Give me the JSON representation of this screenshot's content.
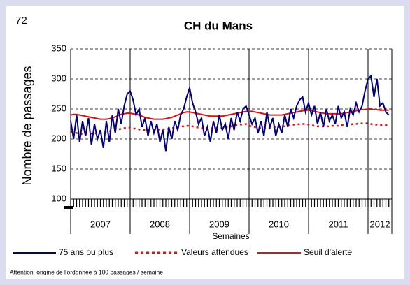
{
  "page_number": "72",
  "chart_data": {
    "type": "line",
    "title": "CH du Mans",
    "y_label": "Nombre de passages",
    "x_label": "Semaines",
    "footnote": "Attention: origine de l'ordonnée à 100 passages / semaine",
    "x": [
      2007,
      2007.05,
      2007.1,
      2007.15,
      2007.2,
      2007.25,
      2007.3,
      2007.35,
      2007.4,
      2007.45,
      2007.5,
      2007.55,
      2007.6,
      2007.65,
      2007.7,
      2007.75,
      2007.8,
      2007.85,
      2007.9,
      2007.95,
      2008,
      2008.05,
      2008.1,
      2008.15,
      2008.2,
      2008.25,
      2008.3,
      2008.35,
      2008.4,
      2008.45,
      2008.5,
      2008.55,
      2008.6,
      2008.65,
      2008.7,
      2008.75,
      2008.8,
      2008.85,
      2008.9,
      2008.95,
      2009,
      2009.05,
      2009.1,
      2009.15,
      2009.2,
      2009.25,
      2009.3,
      2009.35,
      2009.4,
      2009.45,
      2009.5,
      2009.55,
      2009.6,
      2009.65,
      2009.7,
      2009.75,
      2009.8,
      2009.85,
      2009.9,
      2009.95,
      2010,
      2010.05,
      2010.1,
      2010.15,
      2010.2,
      2010.25,
      2010.3,
      2010.35,
      2010.4,
      2010.45,
      2010.5,
      2010.55,
      2010.6,
      2010.65,
      2010.7,
      2010.75,
      2010.8,
      2010.85,
      2010.9,
      2010.95,
      2011,
      2011.05,
      2011.1,
      2011.15,
      2011.2,
      2011.25,
      2011.3,
      2011.35,
      2011.4,
      2011.45,
      2011.5,
      2011.55,
      2011.6,
      2011.65,
      2011.7,
      2011.75,
      2011.8,
      2011.85,
      2011.9,
      2011.95,
      2012,
      2012.05,
      2012.1,
      2012.15,
      2012.2,
      2012.25,
      2012.3,
      2012.35
    ],
    "series": [
      {
        "name": "75 ans ou plus",
        "color": "#000080",
        "style": "solid",
        "values": [
          230,
          200,
          240,
          195,
          230,
          205,
          235,
          190,
          225,
          200,
          215,
          185,
          230,
          195,
          240,
          210,
          250,
          225,
          255,
          275,
          280,
          265,
          240,
          250,
          220,
          235,
          205,
          230,
          210,
          225,
          195,
          215,
          180,
          220,
          200,
          230,
          215,
          240,
          250,
          270,
          285,
          260,
          245,
          225,
          235,
          205,
          220,
          195,
          230,
          210,
          240,
          215,
          225,
          200,
          235,
          215,
          245,
          230,
          250,
          255,
          240,
          225,
          235,
          210,
          230,
          205,
          245,
          220,
          235,
          205,
          225,
          210,
          240,
          220,
          250,
          235,
          255,
          265,
          270,
          245,
          260,
          240,
          255,
          225,
          245,
          220,
          250,
          230,
          240,
          225,
          255,
          235,
          245,
          220,
          250,
          240,
          260,
          245,
          255,
          280,
          300,
          305,
          270,
          300,
          255,
          260,
          245,
          240
        ]
      },
      {
        "name": "Valeurs attendues",
        "color": "#e01010",
        "style": "dotted",
        "values": [
          212,
          211,
          210,
          209,
          208,
          208,
          208,
          209,
          209,
          210,
          210,
          211,
          212,
          213,
          214,
          215,
          216,
          217,
          218,
          219,
          219,
          218,
          217,
          216,
          215,
          215,
          215,
          215,
          215,
          216,
          216,
          216,
          217,
          217,
          218,
          219,
          220,
          221,
          221,
          222,
          222,
          221,
          220,
          219,
          218,
          218,
          218,
          218,
          218,
          219,
          219,
          219,
          220,
          220,
          221,
          222,
          223,
          224,
          224,
          225,
          222,
          221,
          220,
          219,
          219,
          219,
          219,
          219,
          220,
          220,
          220,
          221,
          221,
          222,
          223,
          224,
          224,
          225,
          225,
          225,
          224,
          223,
          222,
          221,
          221,
          221,
          221,
          221,
          222,
          222,
          222,
          223,
          223,
          223,
          224,
          225,
          225,
          226,
          226,
          226,
          226,
          225,
          224,
          224,
          223,
          223,
          223,
          223
        ]
      },
      {
        "name": "Seuil d'alerte",
        "color": "#e01010",
        "style": "solid",
        "values": [
          240,
          241,
          241,
          240,
          239,
          238,
          237,
          236,
          235,
          234,
          233,
          233,
          233,
          234,
          235,
          237,
          239,
          241,
          242,
          243,
          243,
          242,
          241,
          240,
          238,
          236,
          235,
          234,
          233,
          233,
          233,
          233,
          234,
          235,
          236,
          238,
          240,
          242,
          244,
          245,
          245,
          244,
          243,
          242,
          241,
          240,
          239,
          238,
          238,
          238,
          238,
          238,
          239,
          240,
          241,
          242,
          243,
          244,
          245,
          246,
          246,
          246,
          245,
          244,
          243,
          242,
          241,
          240,
          240,
          240,
          240,
          240,
          241,
          242,
          243,
          244,
          245,
          246,
          247,
          248,
          248,
          247,
          246,
          245,
          244,
          243,
          242,
          242,
          242,
          242,
          242,
          242,
          243,
          244,
          245,
          246,
          247,
          248,
          249,
          249,
          250,
          250,
          249,
          249,
          248,
          248,
          248,
          248
        ]
      }
    ],
    "xlim": [
      2007,
      2012.4
    ],
    "xticks": [
      2007,
      2008,
      2009,
      2010,
      2011,
      2012
    ],
    "ylim": [
      100,
      350
    ],
    "yticks": [
      100,
      150,
      200,
      250,
      300,
      350
    ],
    "grid": true,
    "legend": "bottom"
  }
}
